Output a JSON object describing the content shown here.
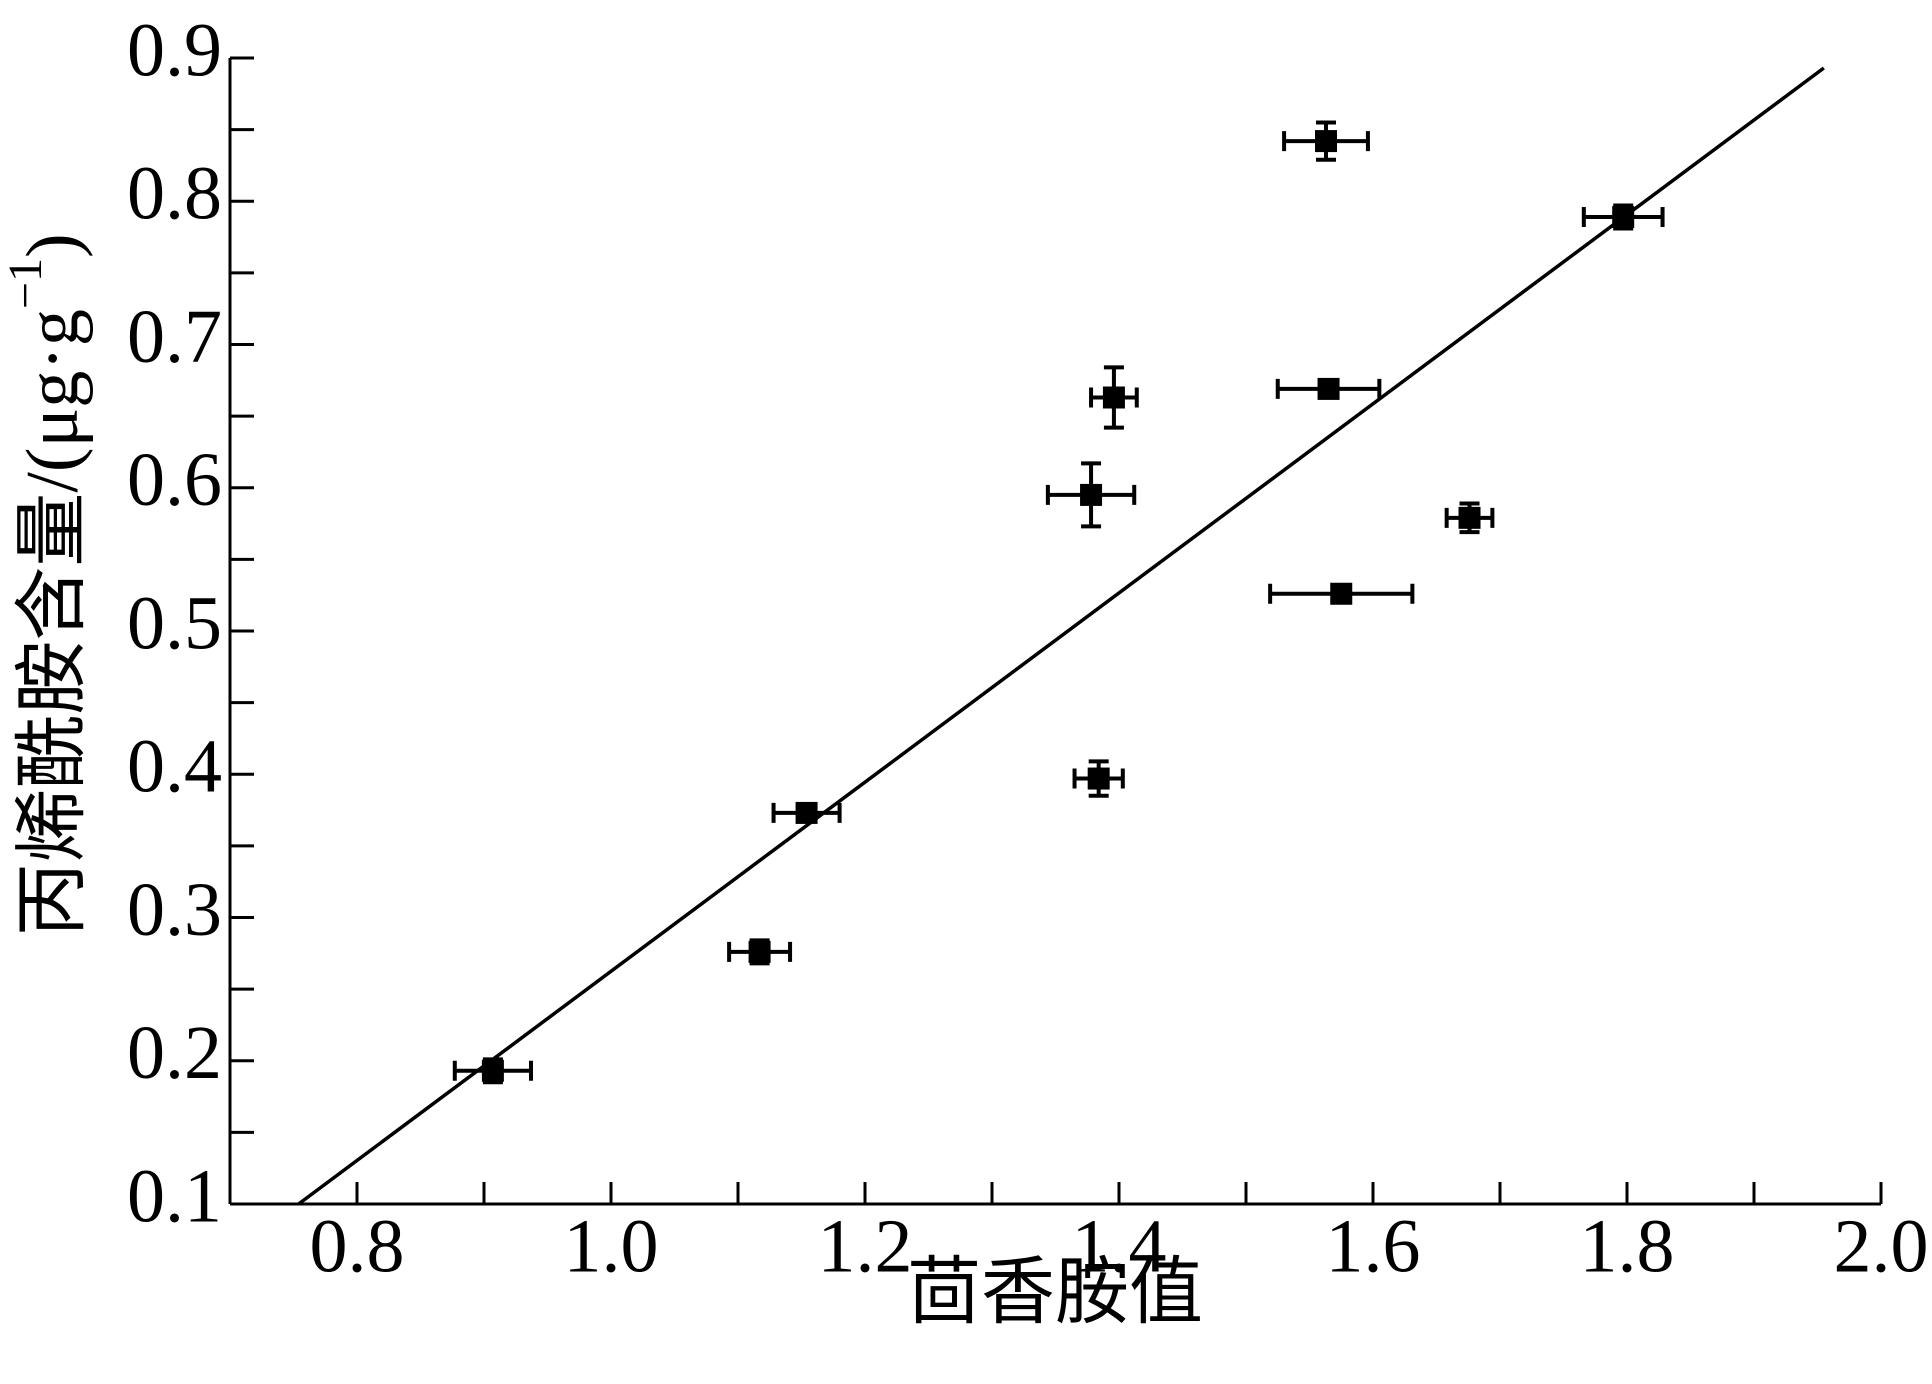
{
  "chart_data": {
    "type": "scatter",
    "xlabel": "茴香胺值",
    "ylabel": {
      "text": "丙烯酰胺含量/(μg·g",
      "sup": "−1",
      "end": ")"
    },
    "xlim": [
      0.7,
      2.0
    ],
    "ylim": [
      0.1,
      0.9
    ],
    "xticks": [
      {
        "value": 0.8,
        "label": "0.8"
      },
      {
        "value": 1.0,
        "label": "1.0"
      },
      {
        "value": 1.2,
        "label": "1.2"
      },
      {
        "value": 1.4,
        "label": "1.4"
      },
      {
        "value": 1.6,
        "label": "1.6"
      },
      {
        "value": 1.8,
        "label": "1.8"
      },
      {
        "value": 2.0,
        "label": "2.0"
      }
    ],
    "yticks": [
      0.1,
      0.2,
      0.3,
      0.4,
      0.5,
      0.6,
      0.7,
      0.8,
      0.9
    ],
    "xticks_minor": [
      0.9,
      1.1,
      1.3,
      1.5,
      1.7,
      1.9
    ],
    "yticks_minor": [
      0.15,
      0.25,
      0.35,
      0.45,
      0.55,
      0.65,
      0.75,
      0.85
    ],
    "series": [
      {
        "color": "#000000",
        "x": [
          0.907,
          1.117,
          1.154,
          1.384,
          1.378,
          1.396,
          1.563,
          1.565,
          1.575,
          1.676,
          1.797
        ],
        "values": [
          0.193,
          0.276,
          0.373,
          0.397,
          0.595,
          0.663,
          0.842,
          0.669,
          0.526,
          0.579,
          0.789
        ],
        "xerr": [
          0.03,
          0.024,
          0.026,
          0.019,
          0.034,
          0.018,
          0.033,
          0.04,
          0.056,
          0.018,
          0.031
        ],
        "yerr": [
          0.008,
          0.008,
          0.005,
          0.012,
          0.022,
          0.021,
          0.013,
          0.005,
          0.006,
          0.01,
          0.008
        ]
      },
      {
        "type": "line",
        "color": "#000000",
        "x": [
          0.754,
          1.955
        ],
        "values": [
          0.1,
          0.893
        ]
      }
    ]
  }
}
